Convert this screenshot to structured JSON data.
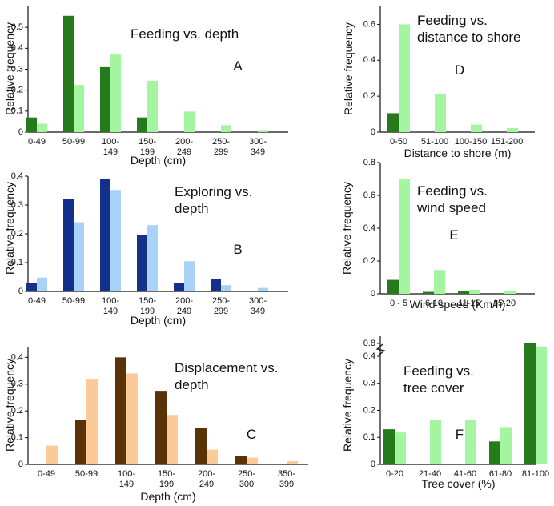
{
  "chart_data": [
    {
      "panel": "A",
      "type": "bar",
      "title": [
        "Feeding vs. depth"
      ],
      "xlabel": "Depth (cm)",
      "ylabel": "Relative frequency",
      "categories": [
        [
          "0-49"
        ],
        [
          "50-99"
        ],
        [
          "100-",
          "149"
        ],
        [
          "150-",
          "199"
        ],
        [
          "200-",
          "249"
        ],
        [
          "250-",
          "299"
        ],
        [
          "300-",
          "349"
        ]
      ],
      "series": [
        {
          "values": [
            0.07,
            0.555,
            0.31,
            0.07,
            0,
            0,
            0
          ],
          "color": "#267a1c"
        },
        {
          "values": [
            0.04,
            0.225,
            0.37,
            0.245,
            0.098,
            0.033,
            0.01
          ],
          "color": "#a4f5a0"
        }
      ],
      "ylim": [
        0,
        0.6
      ],
      "yticks": [
        0,
        0.1,
        0.2,
        0.3,
        0.4,
        0.5
      ]
    },
    {
      "panel": "B",
      "type": "bar",
      "title": [
        "Exploring vs.",
        "depth"
      ],
      "xlabel": "Depth (cm)",
      "ylabel": "Relative frequency",
      "categories": [
        [
          "0-49"
        ],
        [
          "50-99"
        ],
        [
          "100-",
          "149"
        ],
        [
          "150-",
          "199"
        ],
        [
          "200-",
          "249"
        ],
        [
          "250-",
          "299"
        ],
        [
          "300-",
          "349"
        ]
      ],
      "series": [
        {
          "values": [
            0.028,
            0.32,
            0.39,
            0.195,
            0.03,
            0.043,
            0
          ],
          "color": "#14308a"
        },
        {
          "values": [
            0.048,
            0.24,
            0.352,
            0.23,
            0.105,
            0.022,
            0.012
          ],
          "color": "#a9d2f8"
        }
      ],
      "ylim": [
        0,
        0.4
      ],
      "yticks": [
        0,
        0.1,
        0.2,
        0.3,
        0.4
      ]
    },
    {
      "panel": "C",
      "type": "bar",
      "title": [
        "Displacement vs.",
        "depth"
      ],
      "xlabel": "Depth (cm)",
      "ylabel": "Relative frequency",
      "categories": [
        [
          "0-49"
        ],
        [
          "50-99"
        ],
        [
          "100-",
          "149"
        ],
        [
          "150-",
          "199"
        ],
        [
          "200-",
          "249"
        ],
        [
          "250-",
          "300"
        ],
        [
          "350-",
          "399"
        ]
      ],
      "series": [
        {
          "values": [
            0,
            0.165,
            0.4,
            0.275,
            0.135,
            0.03,
            0
          ],
          "color": "#5a3208"
        },
        {
          "values": [
            0.07,
            0.32,
            0.34,
            0.185,
            0.055,
            0.025,
            0.012
          ],
          "color": "#fcc998"
        }
      ],
      "ylim": [
        0,
        0.44
      ],
      "yticks": [
        0,
        0.1,
        0.2,
        0.3,
        0.4
      ]
    },
    {
      "panel": "D",
      "type": "bar",
      "title": [
        "Feeding vs.",
        "distance to shore"
      ],
      "xlabel": "Distance to shore (m)",
      "ylabel": "Relative frequency",
      "categories": [
        [
          "0-50"
        ],
        [
          "51-100"
        ],
        [
          "100-150"
        ],
        [
          "151-200"
        ]
      ],
      "series": [
        {
          "values": [
            0.105,
            0,
            0,
            0
          ],
          "color": "#267a1c"
        },
        {
          "values": [
            0.6,
            0.21,
            0.042,
            0.022
          ],
          "color": "#a4f5a0"
        }
      ],
      "ylim": [
        0,
        0.7
      ],
      "yticks": [
        0,
        0.2,
        0.4,
        0.6
      ]
    },
    {
      "panel": "E",
      "type": "bar",
      "title": [
        "Feeding vs.",
        "wind speed"
      ],
      "xlabel": "Wind speed (Km/h)",
      "ylabel": "Relative frequency",
      "categories": [
        [
          "0 - 5"
        ],
        [
          "6-10"
        ],
        [
          "11-15"
        ],
        [
          "15-20"
        ]
      ],
      "series": [
        {
          "values": [
            0.085,
            0.012,
            0.015,
            0
          ],
          "color": "#267a1c"
        },
        {
          "values": [
            0.7,
            0.145,
            0.025,
            0.018
          ],
          "color": "#a4f5a0"
        }
      ],
      "ylim": [
        0,
        0.8
      ],
      "yticks": [
        0,
        0.2,
        0.4,
        0.6,
        0.8
      ]
    },
    {
      "panel": "F",
      "type": "bar",
      "title": [
        "Feeding vs.",
        "tree cover"
      ],
      "xlabel": "Tree cover (%)",
      "ylabel": "Relative frequency",
      "categories": [
        [
          "0-20"
        ],
        [
          "21-40"
        ],
        [
          "41-60"
        ],
        [
          "61-80"
        ],
        [
          "81-100"
        ]
      ],
      "series": [
        {
          "values": [
            0.13,
            0,
            0,
            0.085,
            0.8
          ],
          "color": "#267a1c"
        },
        {
          "values": [
            0.118,
            0.163,
            0.163,
            0.138,
            0.42
          ],
          "color": "#a4f5a0"
        }
      ],
      "ylim": [
        0,
        0.8
      ],
      "yticks_labels": [
        "0",
        "0.1",
        "0.2",
        "0.3",
        "0.4",
        "0.8"
      ],
      "axis_break": true
    }
  ]
}
